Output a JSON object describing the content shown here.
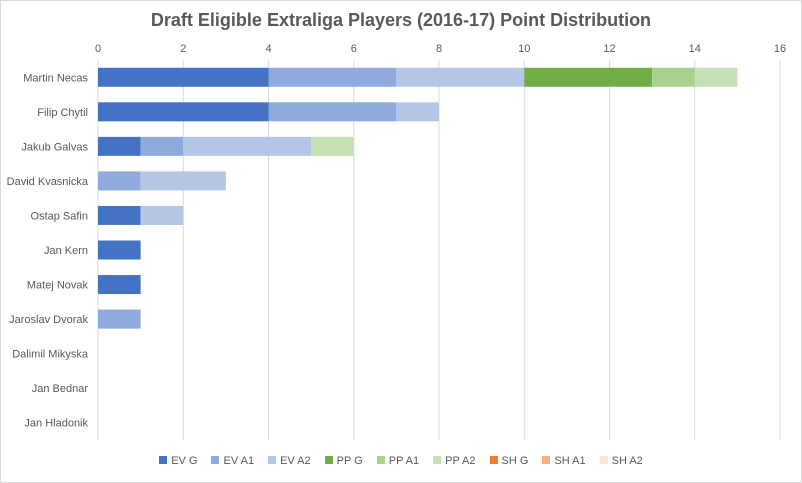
{
  "chart_data": {
    "type": "bar",
    "orientation": "horizontal",
    "stacked": true,
    "title": "Draft Eligible Extraliga Players (2016-17) Point Distribution",
    "xlabel": "",
    "ylabel": "",
    "xlim": [
      0,
      16
    ],
    "x_ticks": [
      0,
      2,
      4,
      6,
      8,
      10,
      12,
      14,
      16
    ],
    "grid": true,
    "legend_position": "bottom",
    "categories": [
      "Martin Necas",
      "Filip Chytil",
      "Jakub Galvas",
      "David Kvasnicka",
      "Ostap Safin",
      "Jan Kern",
      "Matej Novak",
      "Jaroslav Dvorak",
      "Dalimil Mikyska",
      "Jan Bednar",
      "Jan Hladonik"
    ],
    "series": [
      {
        "name": "EV G",
        "color": "#4472c4",
        "values": [
          4,
          4,
          1,
          0,
          1,
          1,
          1,
          0,
          0,
          0,
          0
        ]
      },
      {
        "name": "EV A1",
        "color": "#8faadc",
        "values": [
          3,
          3,
          1,
          1,
          0,
          0,
          0,
          1,
          0,
          0,
          0
        ]
      },
      {
        "name": "EV A2",
        "color": "#b4c7e7",
        "values": [
          3,
          1,
          3,
          2,
          1,
          0,
          0,
          0,
          0,
          0,
          0
        ]
      },
      {
        "name": "PP G",
        "color": "#70ad47",
        "values": [
          3,
          0,
          0,
          0,
          0,
          0,
          0,
          0,
          0,
          0,
          0
        ]
      },
      {
        "name": "PP A1",
        "color": "#a9d18e",
        "values": [
          1,
          0,
          0,
          0,
          0,
          0,
          0,
          0,
          0,
          0,
          0
        ]
      },
      {
        "name": "PP A2",
        "color": "#c5e0b4",
        "values": [
          1,
          0,
          1,
          0,
          0,
          0,
          0,
          0,
          0,
          0,
          0
        ]
      },
      {
        "name": "SH G",
        "color": "#ed7d31",
        "values": [
          0,
          0,
          0,
          0,
          0,
          0,
          0,
          0,
          0,
          0,
          0
        ]
      },
      {
        "name": "SH A1",
        "color": "#f4b183",
        "values": [
          0,
          0,
          0,
          0,
          0,
          0,
          0,
          0,
          0,
          0,
          0
        ]
      },
      {
        "name": "SH A2",
        "color": "#fbe5d6",
        "values": [
          0,
          0,
          0,
          0,
          0,
          0,
          0,
          0,
          0,
          0,
          0
        ]
      }
    ]
  }
}
